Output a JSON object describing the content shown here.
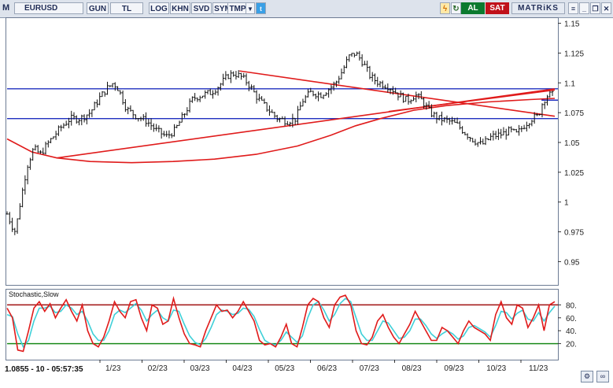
{
  "toolbar": {
    "menu": "M",
    "symbol": "EURUSD",
    "buttons": [
      "GUN",
      "TL",
      "LOG",
      "KHN",
      "SVD",
      "SYM",
      "TMP"
    ],
    "buy_label": "AL",
    "sell_label": "SAT",
    "brand": "MATRiKS"
  },
  "status": {
    "readout": "1.0855 - 10 - 05:57:35"
  },
  "colors": {
    "price": "#111111",
    "support_lines": "#1f2fbf",
    "trend_lines": "#e01b1b",
    "k_line": "#e01b1b",
    "d_line": "#3fd0d8",
    "band_upper": "#a01010",
    "band_lower": "#1a8a1a"
  },
  "chart_data": [
    {
      "type": "ohlc",
      "symbol": "EURUSD",
      "x_ticks": [
        "1/23",
        "02/23",
        "03/23",
        "04/23",
        "05/23",
        "06/23",
        "07/23",
        "08/23",
        "09/23",
        "10/23",
        "11/23"
      ],
      "y_ticks": [
        1.15,
        1.125,
        1.1,
        1.075,
        1.05,
        1.025,
        1,
        0.975,
        0.95
      ],
      "ylim": [
        0.945,
        1.155
      ],
      "price_path": [
        [
          0,
          0.99
        ],
        [
          3,
          0.98
        ],
        [
          5,
          0.975
        ],
        [
          8,
          1.0
        ],
        [
          12,
          1.03
        ],
        [
          16,
          1.045
        ],
        [
          20,
          1.04
        ],
        [
          25,
          1.05
        ],
        [
          32,
          1.062
        ],
        [
          38,
          1.07
        ],
        [
          44,
          1.07
        ],
        [
          50,
          1.075
        ],
        [
          56,
          1.088
        ],
        [
          60,
          1.095
        ],
        [
          64,
          1.1
        ],
        [
          67,
          1.095
        ],
        [
          72,
          1.078
        ],
        [
          78,
          1.072
        ],
        [
          84,
          1.068
        ],
        [
          90,
          1.06
        ],
        [
          96,
          1.055
        ],
        [
          101,
          1.06
        ],
        [
          106,
          1.072
        ],
        [
          112,
          1.087
        ],
        [
          118,
          1.09
        ],
        [
          123,
          1.092
        ],
        [
          128,
          1.098
        ],
        [
          133,
          1.106
        ],
        [
          137,
          1.108
        ],
        [
          141,
          1.105
        ],
        [
          145,
          1.1
        ],
        [
          151,
          1.087
        ],
        [
          157,
          1.078
        ],
        [
          163,
          1.07
        ],
        [
          169,
          1.068
        ],
        [
          174,
          1.07
        ],
        [
          178,
          1.085
        ],
        [
          183,
          1.092
        ],
        [
          189,
          1.09
        ],
        [
          194,
          1.095
        ],
        [
          198,
          1.1
        ],
        [
          202,
          1.11
        ],
        [
          206,
          1.122
        ],
        [
          210,
          1.125
        ],
        [
          214,
          1.118
        ],
        [
          219,
          1.105
        ],
        [
          224,
          1.1
        ],
        [
          230,
          1.097
        ],
        [
          236,
          1.09
        ],
        [
          241,
          1.085
        ],
        [
          246,
          1.09
        ],
        [
          250,
          1.085
        ],
        [
          255,
          1.075
        ],
        [
          260,
          1.07
        ],
        [
          266,
          1.068
        ],
        [
          271,
          1.065
        ],
        [
          276,
          1.058
        ],
        [
          281,
          1.052
        ],
        [
          286,
          1.048
        ],
        [
          292,
          1.055
        ],
        [
          298,
          1.057
        ],
        [
          303,
          1.06
        ],
        [
          307,
          1.057
        ],
        [
          312,
          1.065
        ],
        [
          316,
          1.07
        ],
        [
          320,
          1.072
        ],
        [
          323,
          1.085
        ],
        [
          326,
          1.09
        ]
      ],
      "horizontal_levels": [
        1.095,
        1.07
      ],
      "right_level": 1.0855,
      "trend_lines": [
        {
          "from": [
            30,
            1.037
          ],
          "to": [
            330,
            1.095
          ]
        },
        {
          "from": [
            140,
            1.11
          ],
          "to": [
            330,
            1.072
          ]
        },
        {
          "from": [
            230,
            1.076
          ],
          "to": [
            330,
            1.094
          ]
        }
      ],
      "moving_average": [
        [
          0,
          1.053
        ],
        [
          15,
          1.042
        ],
        [
          30,
          1.037
        ],
        [
          50,
          1.034
        ],
        [
          75,
          1.033
        ],
        [
          100,
          1.034
        ],
        [
          125,
          1.036
        ],
        [
          150,
          1.04
        ],
        [
          175,
          1.047
        ],
        [
          195,
          1.056
        ],
        [
          210,
          1.064
        ],
        [
          225,
          1.07
        ],
        [
          245,
          1.077
        ],
        [
          265,
          1.081
        ],
        [
          290,
          1.084
        ],
        [
          315,
          1.086
        ],
        [
          330,
          1.087
        ]
      ]
    },
    {
      "type": "line",
      "title": "Stochastic,Slow",
      "y_ticks": [
        80,
        60,
        40,
        20
      ],
      "ylim": [
        0,
        100
      ],
      "levels": [
        80,
        20
      ],
      "series": [
        {
          "values": [
            75,
            60,
            10,
            8,
            40,
            75,
            85,
            70,
            82,
            60,
            75,
            88,
            70,
            55,
            80,
            40,
            20,
            15,
            30,
            55,
            85,
            70,
            60,
            85,
            88,
            60,
            40,
            80,
            75,
            50,
            55,
            90,
            60,
            35,
            20,
            18,
            15,
            40,
            60,
            80,
            70,
            72,
            60,
            70,
            85,
            70,
            55,
            25,
            18,
            20,
            15,
            30,
            50,
            20,
            15,
            45,
            80,
            90,
            85,
            60,
            45,
            80,
            92,
            95,
            80,
            40,
            20,
            18,
            30,
            55,
            65,
            45,
            30,
            20,
            35,
            50,
            70,
            55,
            40,
            25,
            25,
            45,
            40,
            30,
            20,
            40,
            55,
            45,
            40,
            35,
            25,
            65,
            85,
            60,
            50,
            80,
            75,
            45,
            60,
            80,
            40,
            80,
            85
          ]
        },
        {
          "values": [
            65,
            62,
            35,
            15,
            25,
            55,
            75,
            75,
            78,
            68,
            70,
            80,
            75,
            65,
            70,
            55,
            35,
            25,
            25,
            40,
            65,
            72,
            68,
            75,
            82,
            72,
            55,
            65,
            72,
            60,
            55,
            72,
            70,
            50,
            32,
            22,
            18,
            28,
            45,
            65,
            72,
            70,
            65,
            67,
            75,
            73,
            62,
            42,
            25,
            20,
            18,
            25,
            38,
            30,
            22,
            32,
            60,
            80,
            85,
            72,
            55,
            65,
            82,
            90,
            85,
            60,
            35,
            25,
            25,
            40,
            55,
            52,
            40,
            28,
            30,
            40,
            58,
            58,
            48,
            35,
            28,
            35,
            40,
            35,
            27,
            32,
            45,
            48,
            43,
            38,
            30,
            48,
            70,
            68,
            58,
            67,
            72,
            58,
            55,
            68,
            55,
            68,
            78
          ]
        }
      ]
    }
  ]
}
